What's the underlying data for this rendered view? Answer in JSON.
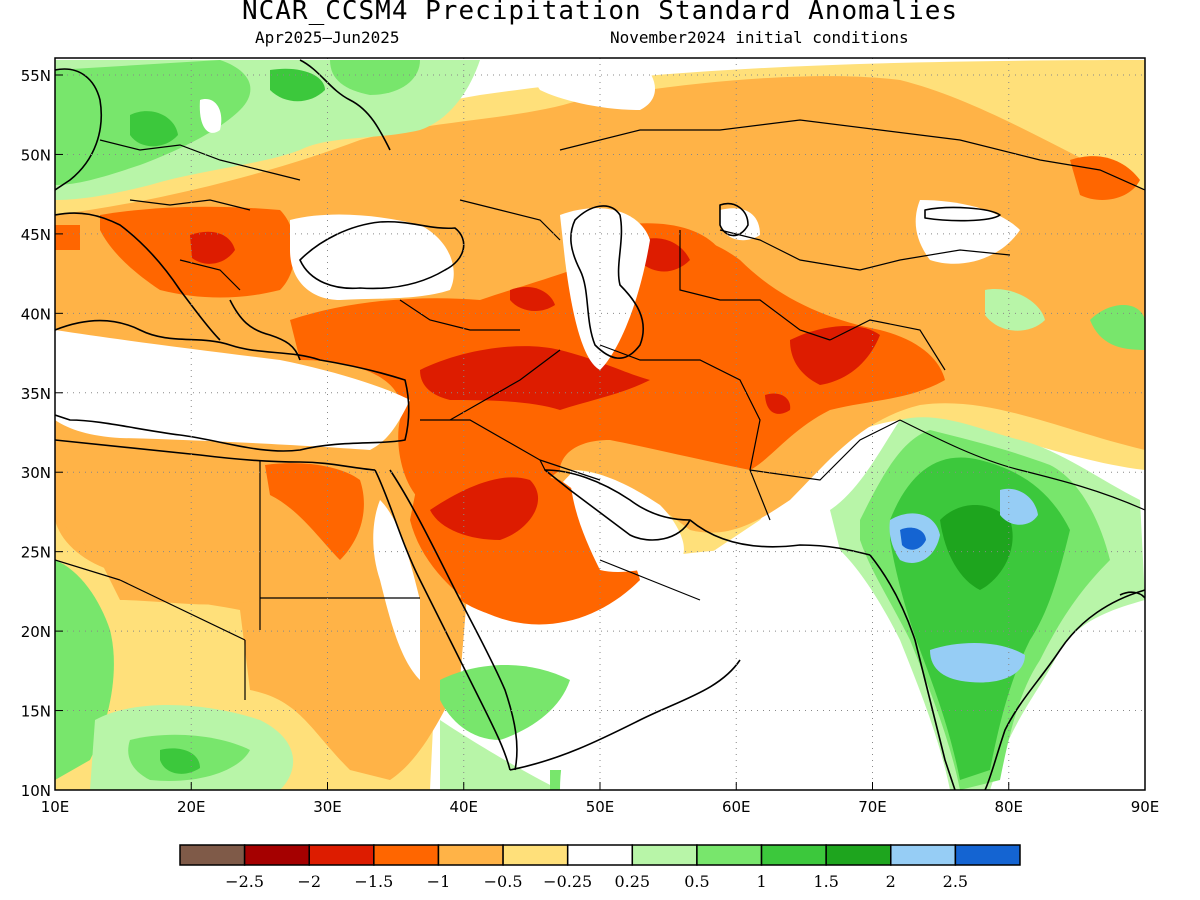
{
  "header": {
    "title": "NCAR_CCSM4 Precipitation Standard Anomalies",
    "period": "Apr2025–Jun2025",
    "init": "November2024 initial conditions"
  },
  "map": {
    "lon_ticks": [
      "10E",
      "20E",
      "30E",
      "40E",
      "50E",
      "60E",
      "70E",
      "80E",
      "90E"
    ],
    "lat_ticks": [
      "55N",
      "50N",
      "45N",
      "40N",
      "35N",
      "30N",
      "25N",
      "20N",
      "15N",
      "10N"
    ]
  },
  "colorbar": {
    "colors": [
      "#7f5a48",
      "#a50000",
      "#dd1c00",
      "#ff6600",
      "#ffb347",
      "#ffe07a",
      "#ffffff",
      "#b8f5a8",
      "#78e66c",
      "#3cc83c",
      "#1ea51e",
      "#96cdf5",
      "#1464d2"
    ],
    "labels": [
      "−2.5",
      "−2",
      "−1.5",
      "−1",
      "−0.5",
      "−0.25",
      "0.25",
      "0.5",
      "1",
      "1.5",
      "2",
      "2.5"
    ]
  }
}
